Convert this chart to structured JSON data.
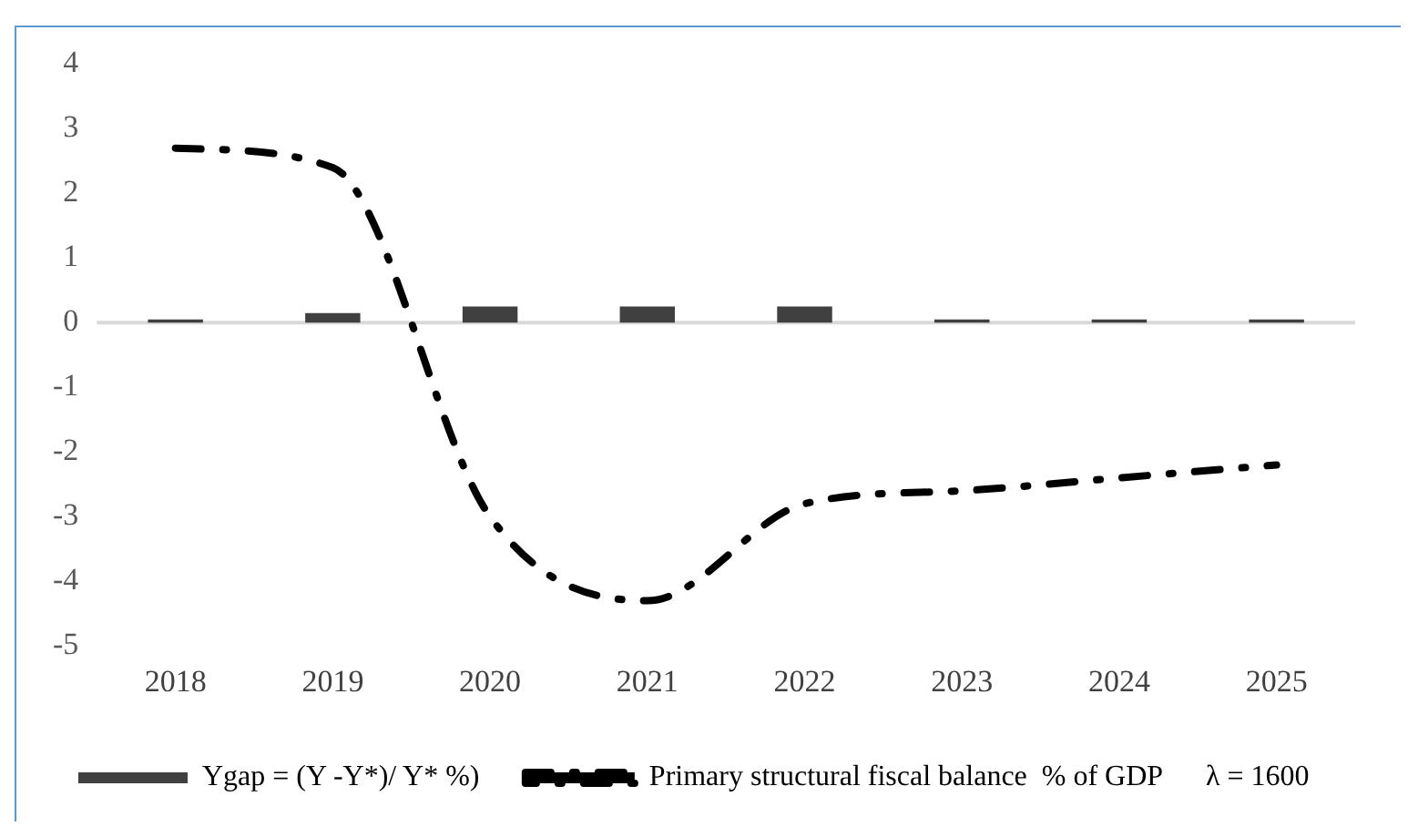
{
  "chart_data": {
    "type": "bar",
    "categories": [
      "2018",
      "2019",
      "2020",
      "2021",
      "2022",
      "2023",
      "2024",
      "2025"
    ],
    "series": [
      {
        "name": "Ygap = (Y -Y*)/ Y* %)",
        "color": "#404040",
        "values": [
          0.05,
          0.15,
          0.25,
          0.25,
          0.25,
          0.05,
          0.05,
          0.05
        ]
      },
      {
        "name": "Primary structural fiscal balance  % of GDP      λ = 1600",
        "type": "line",
        "color": "#000000",
        "values": [
          2.7,
          2.4,
          -3.0,
          -4.3,
          -2.8,
          -2.6,
          -2.4,
          -2.2
        ],
        "line_style": "dashed"
      }
    ],
    "ylim": [
      -5,
      4
    ],
    "yticks": [
      -5,
      -4,
      -3,
      -2,
      -1,
      0,
      1,
      2,
      3,
      4
    ],
    "grid": false,
    "ref_lines": [
      {
        "axis": "y",
        "value": 0,
        "color": "#d9d9d9"
      }
    ],
    "legend": "bottom",
    "marker": "none"
  }
}
